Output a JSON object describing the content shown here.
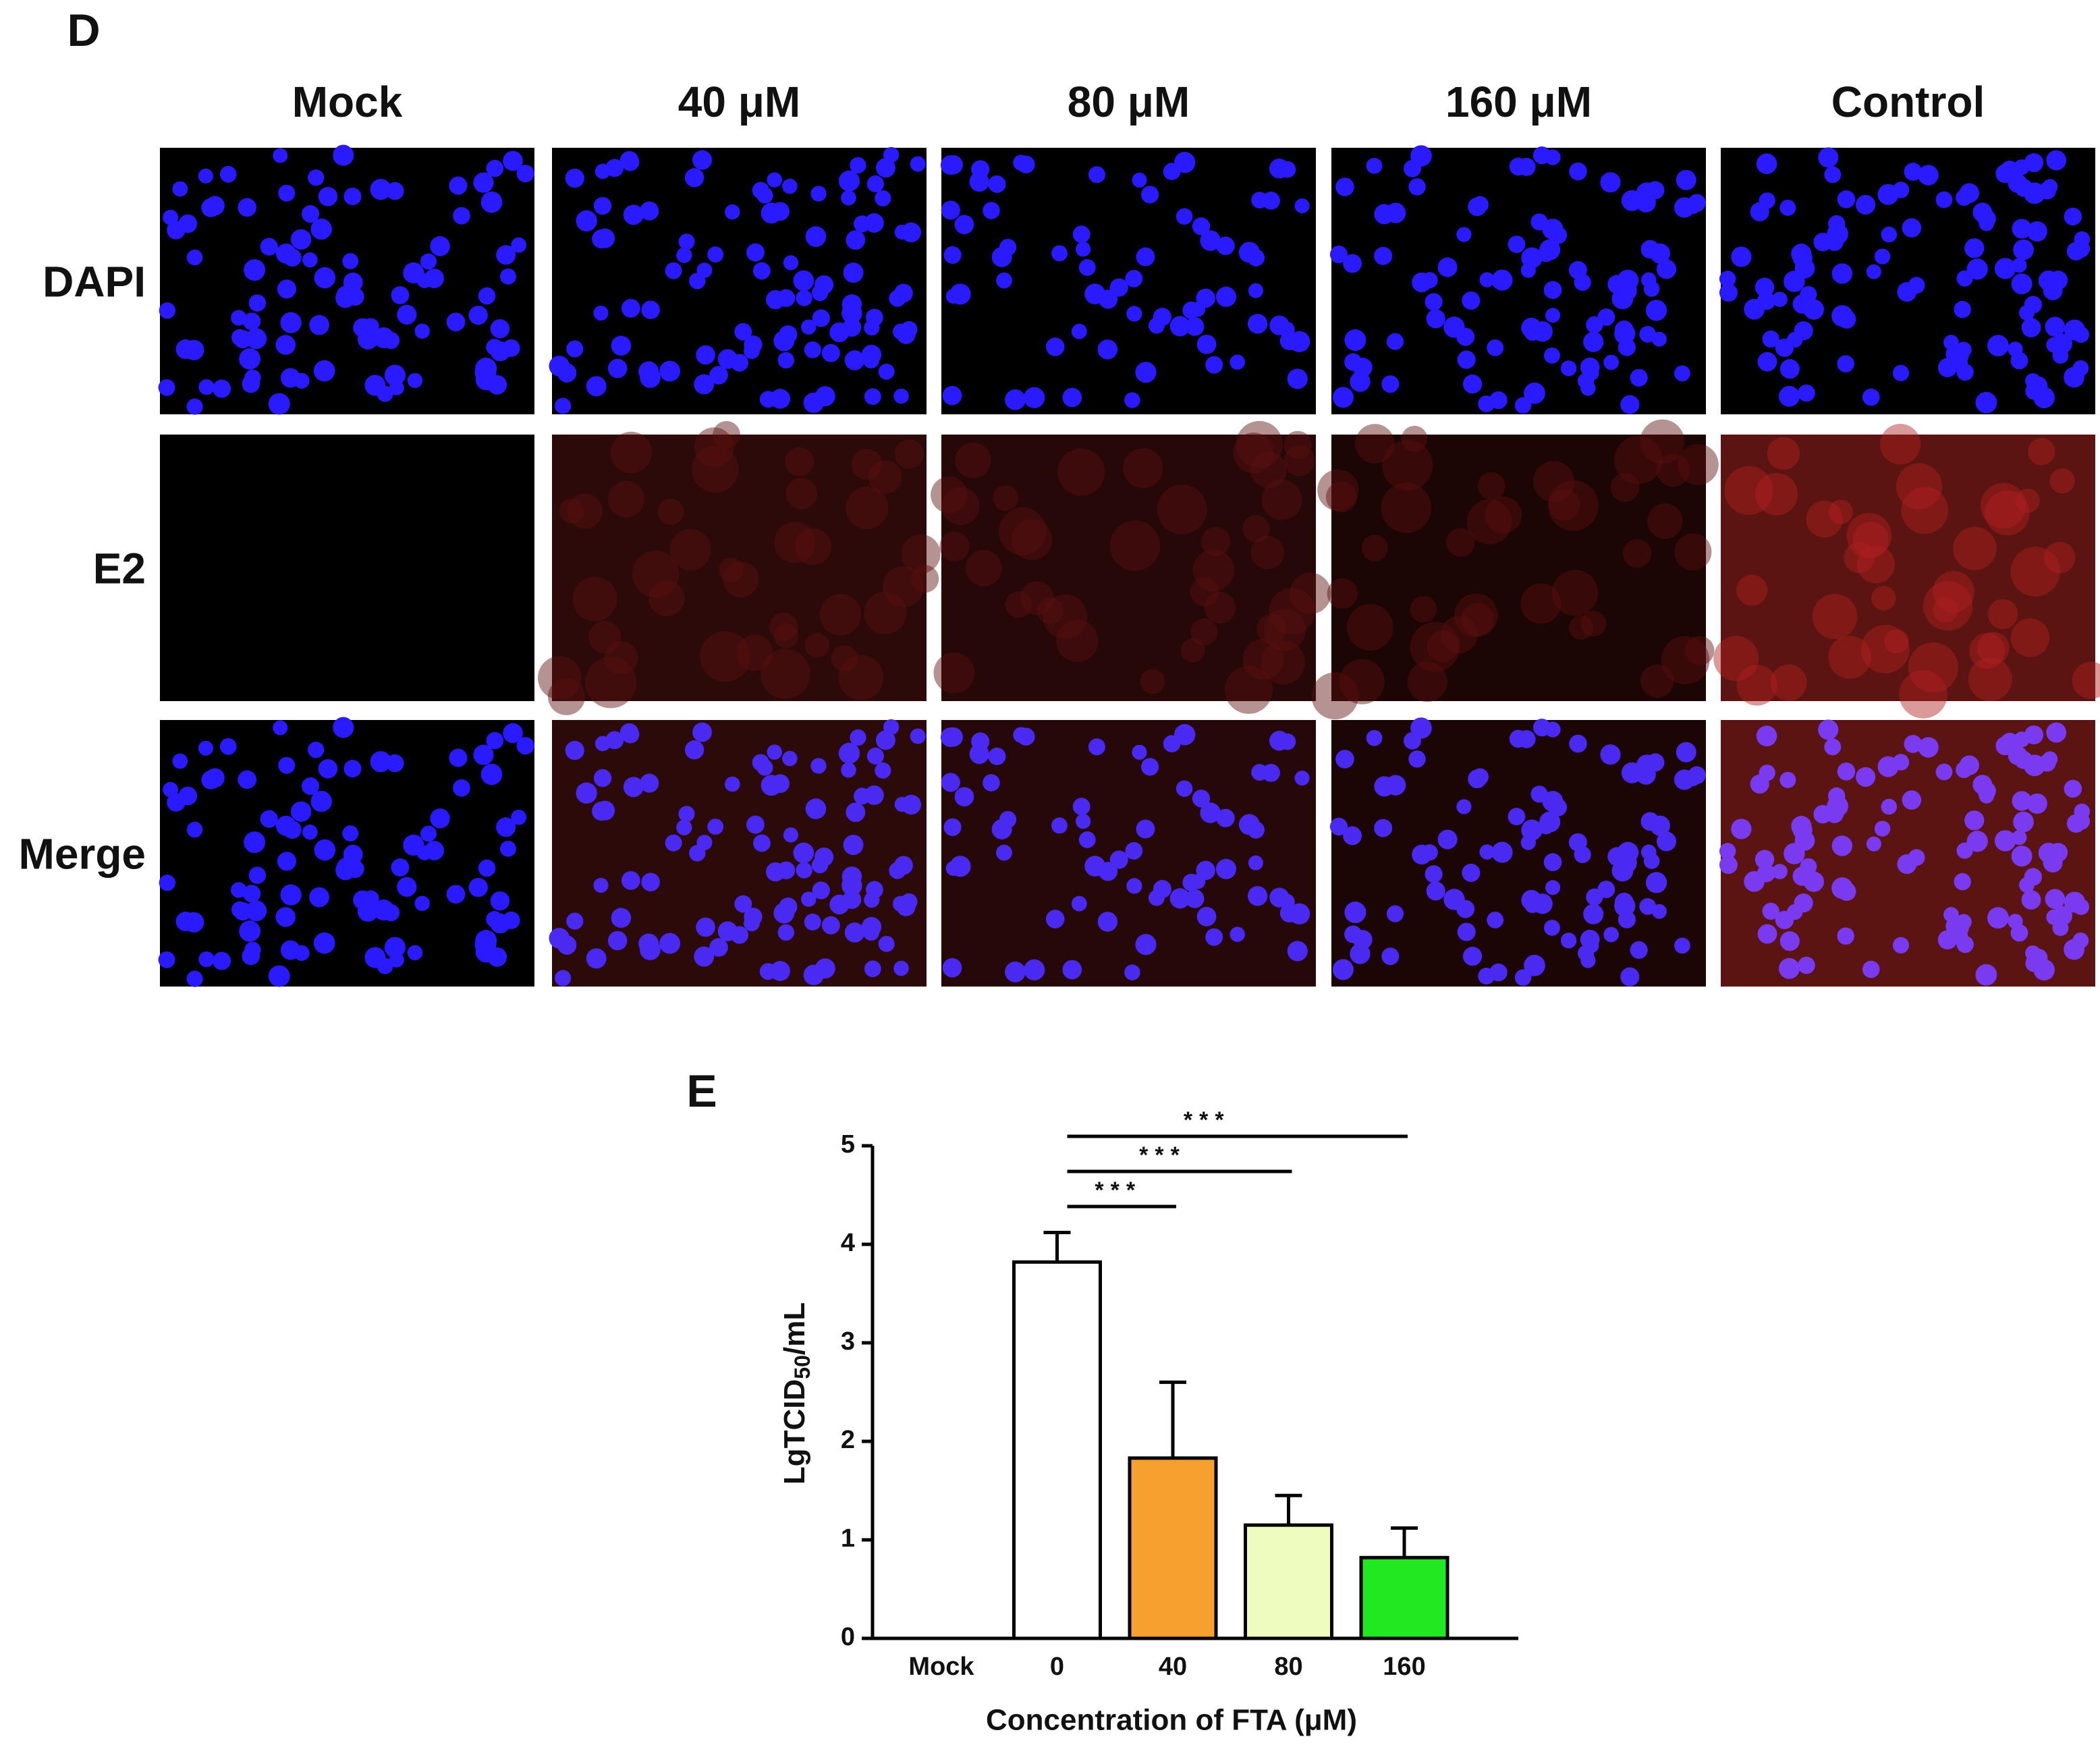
{
  "panel_d": {
    "letter": "D",
    "columns": [
      "Mock",
      "40 μM",
      "80 μM",
      "160 μM",
      "Control"
    ],
    "rows": [
      "DAPI",
      "E2",
      "Merge"
    ]
  },
  "chart_data": {
    "type": "bar",
    "letter": "E",
    "categories": [
      "Mock",
      "0",
      "40",
      "80",
      "160"
    ],
    "values": [
      null,
      3.82,
      1.83,
      1.15,
      0.82
    ],
    "errors": [
      null,
      0.3,
      0.77,
      0.3,
      0.3
    ],
    "colors": [
      null,
      "#ffffff",
      "#f7a030",
      "#eefcc0",
      "#22e822"
    ],
    "ylim": [
      0,
      5
    ],
    "yticks": [
      0,
      1,
      2,
      3,
      4,
      5
    ],
    "ylabel": [
      "LgTCID",
      "50",
      "/mL"
    ],
    "xlabel": "Concentration of FTA (μM)",
    "annotations": [
      {
        "from": 1,
        "to": 2,
        "label": "***"
      },
      {
        "from": 1,
        "to": 3,
        "label": "***"
      },
      {
        "from": 1,
        "to": 4,
        "label": "***"
      }
    ]
  }
}
